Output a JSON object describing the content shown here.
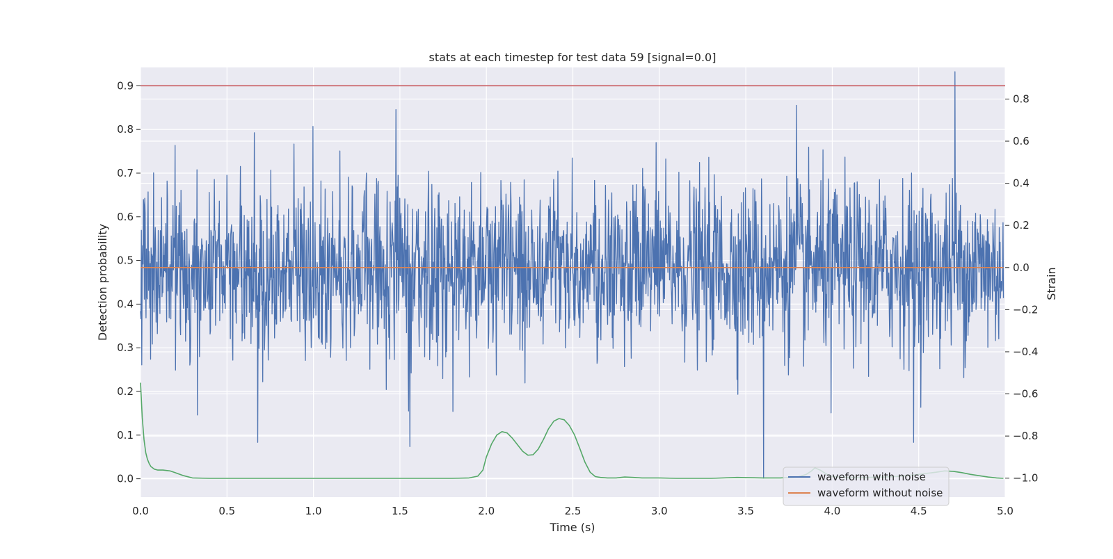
{
  "chart_data": {
    "type": "line",
    "title": "stats at each timestep for test data 59 [signal=0.0]",
    "xlabel": "Time (s)",
    "ylabel_left": "Detection probability",
    "ylabel_right": "Strain",
    "xlim": [
      0.0,
      5.0
    ],
    "ylim_left": [
      -0.042,
      0.942
    ],
    "ylim_right": [
      -1.09,
      0.95
    ],
    "x_ticks": [
      "0.0",
      "0.5",
      "1.0",
      "1.5",
      "2.0",
      "2.5",
      "3.0",
      "3.5",
      "4.0",
      "4.5",
      "5.0"
    ],
    "y_left_ticks": [
      "0.0",
      "0.1",
      "0.2",
      "0.3",
      "0.4",
      "0.5",
      "0.6",
      "0.7",
      "0.8",
      "0.9"
    ],
    "y_right_ticks": [
      "−1.0",
      "−0.8",
      "−0.6",
      "−0.4",
      "−0.2",
      "0.0",
      "0.2",
      "0.4",
      "0.6",
      "0.8"
    ],
    "y_right_tick_values": [
      -1.0,
      -0.8,
      -0.6,
      -0.4,
      -0.2,
      0.0,
      0.2,
      0.4,
      0.6,
      0.8
    ],
    "grid": true,
    "legend_position": "lower-right",
    "threshold": {
      "axis": "left",
      "value": 0.9,
      "color": "#c44e52"
    },
    "series": [
      {
        "name": "waveform with noise",
        "axis": "right",
        "color": "#4c72b0",
        "kind": "noise",
        "samples": 2048,
        "std": 0.2,
        "spikes": [
          {
            "x": 0.2,
            "y": 0.58
          },
          {
            "x": 0.66,
            "y": 0.64
          },
          {
            "x": 1.0,
            "y": 0.67
          },
          {
            "x": 1.48,
            "y": 0.75
          },
          {
            "x": 2.5,
            "y": 0.52
          },
          {
            "x": 3.8,
            "y": 0.77
          },
          {
            "x": 4.72,
            "y": 0.93
          },
          {
            "x": 0.68,
            "y": -0.83
          },
          {
            "x": 1.56,
            "y": -0.85
          },
          {
            "x": 3.61,
            "y": -1.0
          },
          {
            "x": 4.48,
            "y": -0.83
          },
          {
            "x": 0.33,
            "y": -0.7
          },
          {
            "x": 4.0,
            "y": -0.69
          }
        ]
      },
      {
        "name": "waveform without noise",
        "axis": "right",
        "color": "#dd8452",
        "kind": "flat",
        "value": 0.0
      },
      {
        "name": "",
        "axis": "left",
        "color": "#55a868",
        "kind": "line",
        "x": [
          0.0,
          0.01,
          0.02,
          0.03,
          0.04,
          0.05,
          0.06,
          0.08,
          0.1,
          0.13,
          0.17,
          0.2,
          0.25,
          0.3,
          0.4,
          0.6,
          0.8,
          1.0,
          1.2,
          1.4,
          1.6,
          1.8,
          1.9,
          1.95,
          1.98,
          2.0,
          2.03,
          2.06,
          2.09,
          2.12,
          2.15,
          2.18,
          2.21,
          2.24,
          2.27,
          2.3,
          2.33,
          2.36,
          2.39,
          2.42,
          2.45,
          2.48,
          2.51,
          2.54,
          2.57,
          2.6,
          2.63,
          2.66,
          2.7,
          2.75,
          2.8,
          2.85,
          2.9,
          3.0,
          3.1,
          3.2,
          3.3,
          3.45,
          3.6,
          3.7,
          3.8,
          3.85,
          3.88,
          3.9,
          3.93,
          3.97,
          4.0,
          4.1,
          4.2,
          4.3,
          4.4,
          4.5,
          4.6,
          4.65,
          4.7,
          4.75,
          4.8,
          4.85,
          4.9,
          4.95,
          4.99
        ],
        "y": [
          0.22,
          0.14,
          0.09,
          0.06,
          0.045,
          0.035,
          0.028,
          0.022,
          0.02,
          0.02,
          0.018,
          0.014,
          0.007,
          0.002,
          0.001,
          0.001,
          0.001,
          0.001,
          0.001,
          0.001,
          0.001,
          0.001,
          0.002,
          0.006,
          0.02,
          0.05,
          0.08,
          0.1,
          0.108,
          0.105,
          0.093,
          0.078,
          0.063,
          0.054,
          0.055,
          0.068,
          0.09,
          0.115,
          0.132,
          0.138,
          0.135,
          0.122,
          0.1,
          0.07,
          0.038,
          0.015,
          0.005,
          0.003,
          0.002,
          0.002,
          0.004,
          0.003,
          0.002,
          0.002,
          0.001,
          0.001,
          0.001,
          0.003,
          0.002,
          0.002,
          0.004,
          0.01,
          0.018,
          0.025,
          0.02,
          0.01,
          0.005,
          0.003,
          0.003,
          0.004,
          0.006,
          0.01,
          0.015,
          0.018,
          0.017,
          0.014,
          0.01,
          0.007,
          0.004,
          0.002,
          0.001
        ]
      }
    ]
  }
}
